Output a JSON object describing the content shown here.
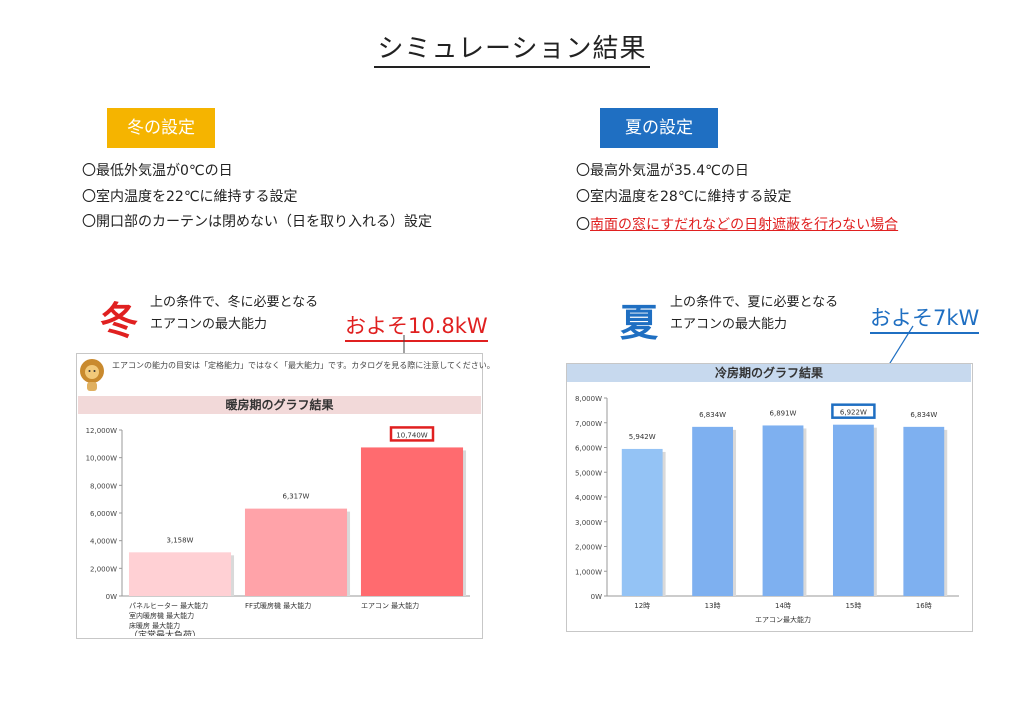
{
  "page": {
    "title": "シミュレーション結果"
  },
  "winter": {
    "badge": "冬の設定",
    "conditions": [
      "〇最低外気温が0℃の日",
      "〇室内温度を22℃に維持する設定",
      "〇開口部のカーテンは閉めない（日を取り入れる）設定"
    ],
    "kanji": "冬",
    "lead_1": "上の条件で、冬に必要となる",
    "lead_2": "エアコンの最大能力",
    "approx": "およそ10.8kW",
    "note": "エアコンの能力の目安は「定格能力」ではなく「最大能力」です。カタログを見る際に注意してください。"
  },
  "summer": {
    "badge": "夏の設定",
    "conditions": [
      "〇最高外気温が35.4℃の日",
      "〇室内温度を28℃に維持する設定"
    ],
    "condition_prefix": "〇",
    "condition_red": "南面の窓にすだれなどの日射遮蔽を行わない場合",
    "kanji": "夏",
    "lead_1": "上の条件で、夏に必要となる",
    "lead_2": "エアコンの最大能力",
    "approx": "およそ7kW"
  },
  "colors": {
    "winter_accent": "#e02020",
    "summer_accent": "#1f6fc2",
    "winter_badge": "#f5b400",
    "summer_badge": "#1f6fc2"
  },
  "chart_data": [
    {
      "type": "bar",
      "title": "暖房期のグラフ結果",
      "categories": [
        "パネルヒーター 最大能力\n室内暖房機 最大能力\n床暖房 最大能力\n（定常最大負荷）",
        "FF式暖房機 最大能力",
        "エアコン 最大能力"
      ],
      "values": [
        3158,
        6317,
        10740
      ],
      "value_labels": [
        "3,158W",
        "6,317W",
        "10,740W"
      ],
      "ylim": [
        0,
        12000
      ],
      "yticks": [
        "0W",
        "2,000W",
        "4,000W",
        "6,000W",
        "8,000W",
        "10,000W",
        "12,000W"
      ],
      "bar_colors": [
        "#ffd0d4",
        "#ffa3a9",
        "#ff6b6f"
      ],
      "highlight_index": 2,
      "grid": false
    },
    {
      "type": "bar",
      "title": "冷房期のグラフ結果",
      "categories": [
        "12時",
        "13時",
        "14時",
        "15時",
        "16時"
      ],
      "values": [
        5942,
        6834,
        6891,
        6922,
        6834
      ],
      "value_labels": [
        "5,942W",
        "6,834W",
        "6,891W",
        "6,922W",
        "6,834W"
      ],
      "xlabel": "エアコン最大能力",
      "ylim": [
        0,
        8000
      ],
      "yticks": [
        "0W",
        "1,000W",
        "2,000W",
        "3,000W",
        "4,000W",
        "5,000W",
        "6,000W",
        "7,000W",
        "8,000W"
      ],
      "bar_colors": [
        "#94c3f5",
        "#7eb0f0",
        "#7eb0f0",
        "#7eb0f0",
        "#7eb0f0"
      ],
      "highlight_index": 3,
      "grid": false
    }
  ]
}
